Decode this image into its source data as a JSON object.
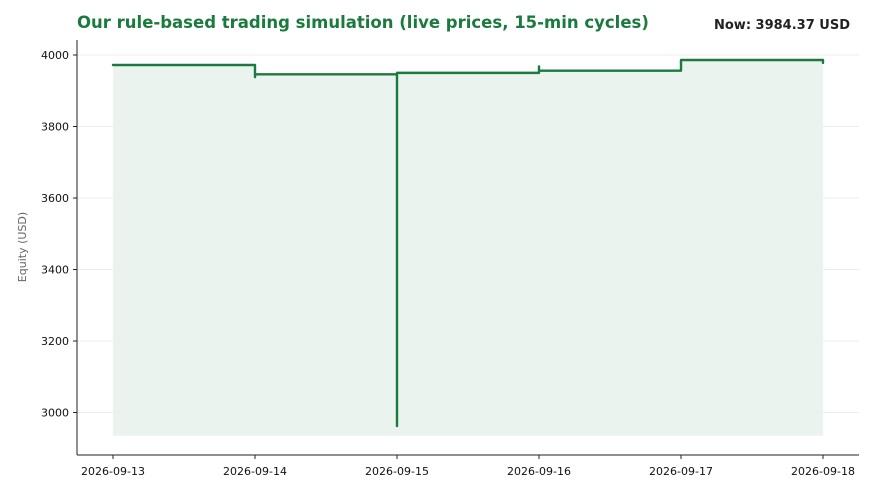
{
  "header": {
    "title": "Our rule-based trading simulation (live prices, 15-min cycles)",
    "now_label": "Now: 3984.37 USD"
  },
  "colors": {
    "line": "#1b7a3e",
    "fill": "#eaf3ee",
    "grid": "#ececec",
    "title": "#1b7a3e"
  },
  "chart_data": {
    "type": "line",
    "step": true,
    "title": "Our rule-based trading simulation (live prices, 15-min cycles)",
    "xlabel": "",
    "ylabel": "Equity (USD)",
    "x_ticks": [
      "2026-09-13",
      "2026-09-14",
      "2026-09-15",
      "2026-09-16",
      "2026-09-17",
      "2026-09-18"
    ],
    "y_ticks": [
      3000,
      3200,
      3400,
      3600,
      3800,
      4000
    ],
    "xlim": [
      "2026-09-13",
      "2026-09-18"
    ],
    "ylim": [
      2880,
      4040
    ],
    "grid": "horizontal",
    "legend": "none",
    "series": [
      {
        "name": "",
        "points": [
          {
            "x": "2026-09-13",
            "y": 3972
          },
          {
            "x": "2026-09-14",
            "y": 3972
          },
          {
            "x": "2026-09-14",
            "y": 3938
          },
          {
            "x": "2026-09-14",
            "y": 3946
          },
          {
            "x": "2026-09-15",
            "y": 3946
          },
          {
            "x": "2026-09-15",
            "y": 2962
          },
          {
            "x": "2026-09-15",
            "y": 3950
          },
          {
            "x": "2026-09-16",
            "y": 3950
          },
          {
            "x": "2026-09-16",
            "y": 3968
          },
          {
            "x": "2026-09-16",
            "y": 3956
          },
          {
            "x": "2026-09-17",
            "y": 3956
          },
          {
            "x": "2026-09-17",
            "y": 3986
          },
          {
            "x": "2026-09-18",
            "y": 3986
          },
          {
            "x": "2026-09-18",
            "y": 3978
          },
          {
            "x": "2026-09-18",
            "y": 3984.37
          }
        ],
        "fill_baseline": 2935
      }
    ]
  }
}
